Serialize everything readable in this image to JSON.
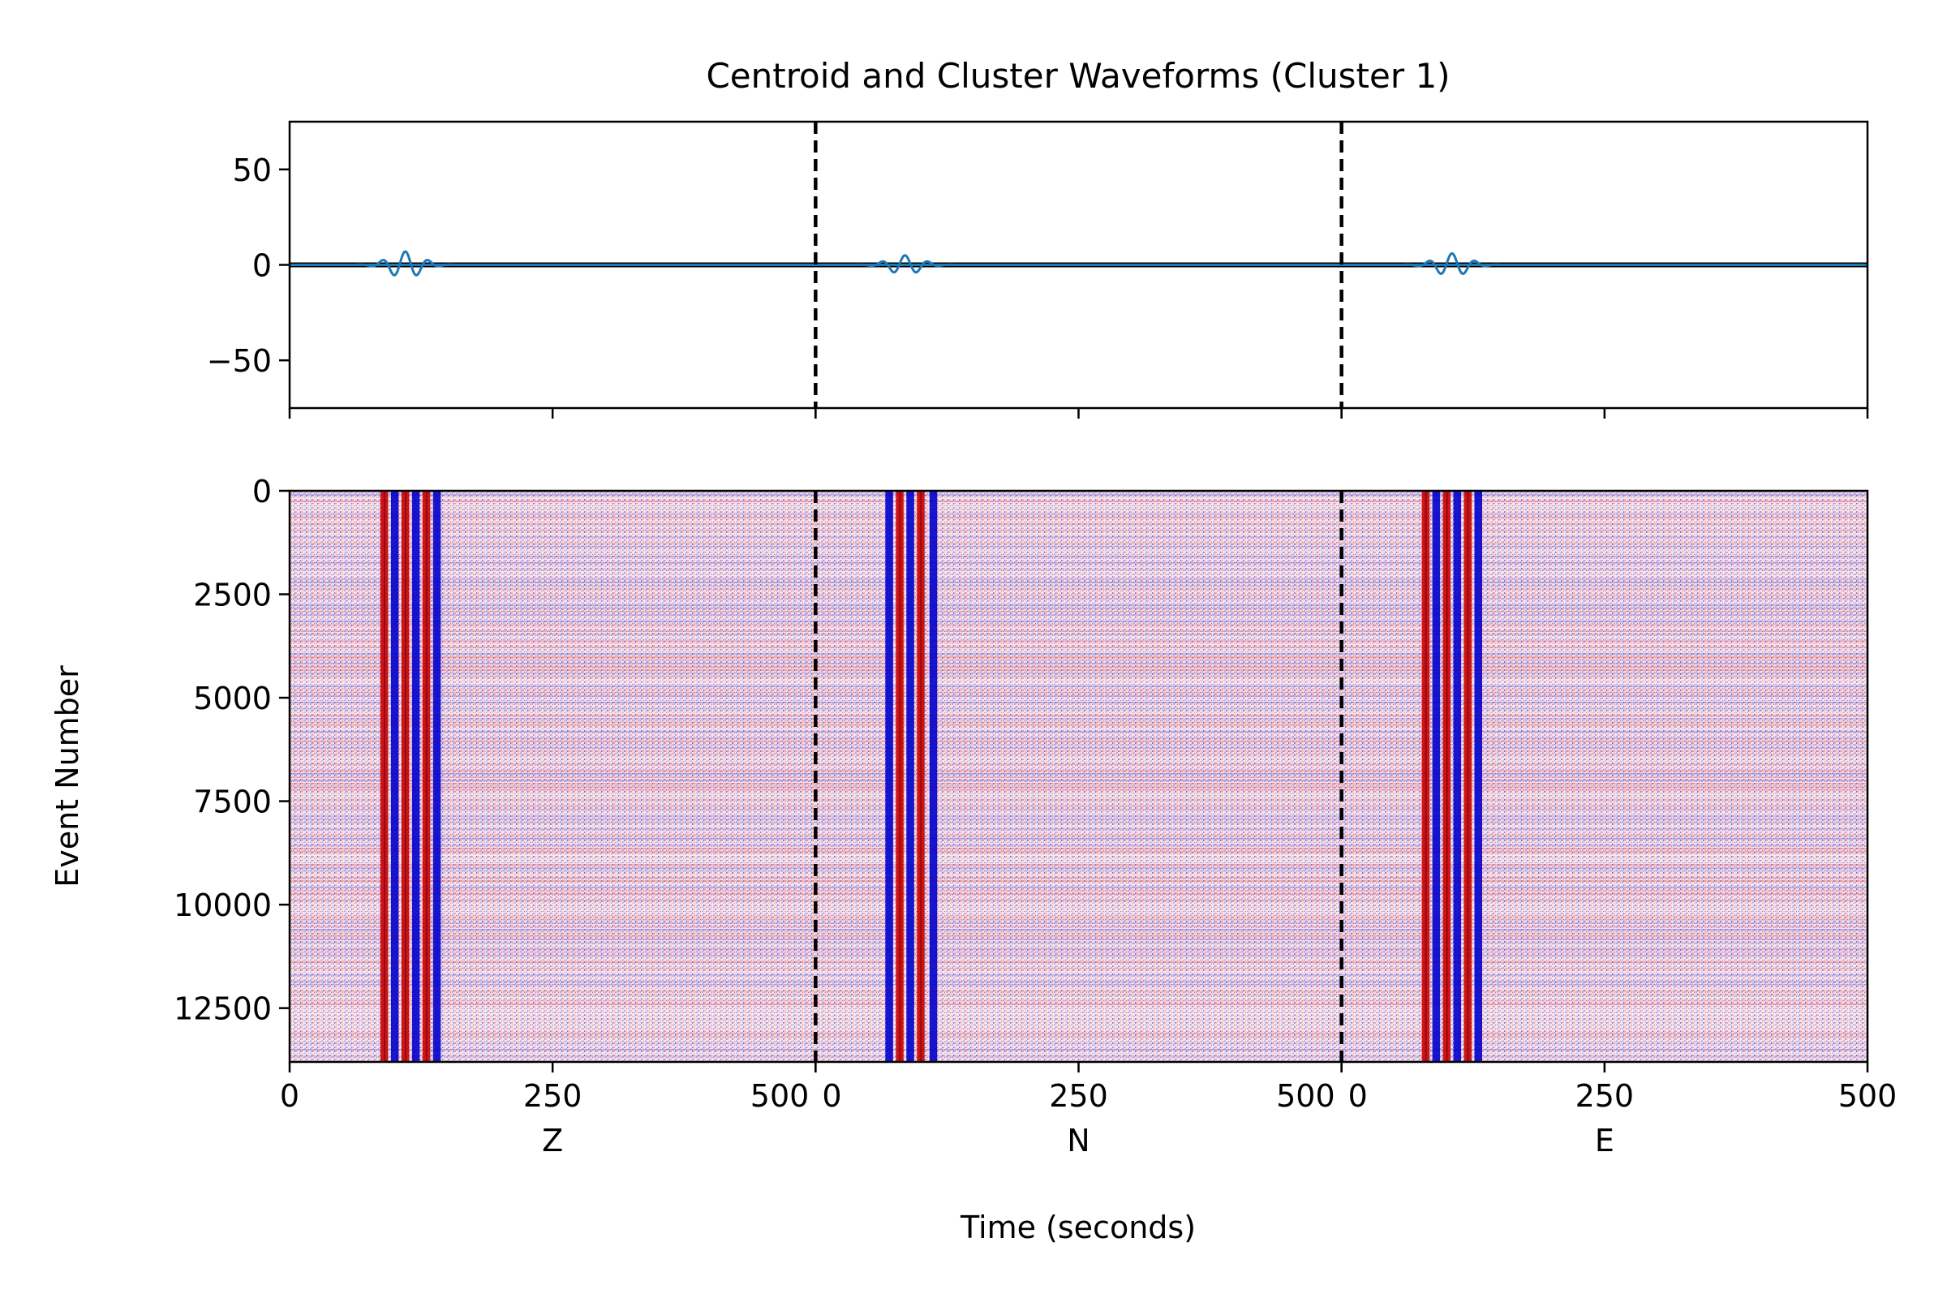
{
  "chart_data": [
    {
      "type": "line",
      "panel": "centroid",
      "title": "Centroid and Cluster Waveforms (Cluster 1)",
      "ylim": [
        -75,
        75
      ],
      "yticks": [
        50,
        0,
        -50
      ],
      "ytick_labels": [
        "50",
        "0",
        "−50"
      ],
      "xlim": [
        0,
        1500
      ],
      "component_boundaries": [
        500,
        1000
      ],
      "components": [
        {
          "name": "Z",
          "onset_s": 80,
          "peak_s": 110,
          "peak_amplitude": 7
        },
        {
          "name": "N",
          "onset_s": 60,
          "peak_s": 85,
          "peak_amplitude": 5
        },
        {
          "name": "E",
          "onset_s": 75,
          "peak_s": 105,
          "peak_amplitude": 6
        }
      ],
      "series": [
        {
          "values_note": "",
          "color": "#1f77b4"
        }
      ],
      "grid": false
    },
    {
      "type": "heatmap",
      "panel": "cluster",
      "xlabel": "Time (seconds)",
      "ylabel": "Event Number",
      "ylim": [
        13800,
        0
      ],
      "yticks": [
        0,
        2500,
        5000,
        7500,
        10000,
        12500
      ],
      "ytick_labels": [
        "0",
        "2500",
        "5000",
        "7500",
        "10000",
        "12500"
      ],
      "xlim": [
        0,
        1500
      ],
      "xticks_per_component": [
        0,
        250,
        500
      ],
      "xtick_labels": [
        "0",
        "250",
        "500",
        "0",
        "250",
        "500",
        "0",
        "250",
        "500"
      ],
      "component_labels": [
        "Z",
        "N",
        "E"
      ],
      "component_boundaries": [
        500,
        1000
      ],
      "colormap": "seismic",
      "color_negative": "#0000cc",
      "color_positive": "#cc0000",
      "color_zero": "#ffffff",
      "stripes_s": {
        "Z": [
          [
            90,
            "+"
          ],
          [
            100,
            "-"
          ],
          [
            110,
            "+"
          ],
          [
            120,
            "-"
          ],
          [
            130,
            "+"
          ],
          [
            140,
            "-"
          ]
        ],
        "N": [
          [
            70,
            "-"
          ],
          [
            80,
            "+"
          ],
          [
            90,
            "-"
          ],
          [
            100,
            "+"
          ],
          [
            112,
            "-"
          ]
        ],
        "E": [
          [
            80,
            "+"
          ],
          [
            90,
            "-"
          ],
          [
            100,
            "+"
          ],
          [
            110,
            "-"
          ],
          [
            120,
            "+"
          ],
          [
            130,
            "-"
          ]
        ]
      },
      "grid": false
    }
  ],
  "colors": {
    "boundary": "#000000",
    "trace": "#1f77b4"
  }
}
